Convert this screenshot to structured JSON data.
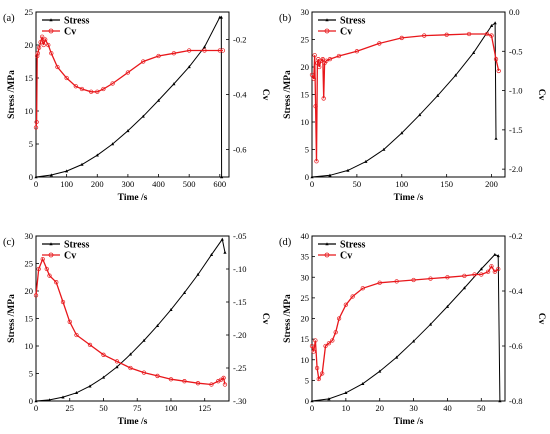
{
  "colors": {
    "stress": "#000000",
    "cv": "#e8171b",
    "axis": "#000000"
  },
  "chart_data": [
    {
      "type": "line",
      "panel_label": "(a)",
      "xlabel": "Time /s",
      "ylabel_left": "Stress /MPa",
      "ylabel_right": "Cv",
      "xlim": [
        0,
        630
      ],
      "xticks": [
        0,
        100,
        200,
        300,
        400,
        500,
        600
      ],
      "ylim_left": [
        0,
        25
      ],
      "yticks_left": [
        0,
        5,
        10,
        15,
        20,
        25
      ],
      "ylim_right": [
        -0.7,
        -0.1
      ],
      "yticks_right": [
        -0.6,
        -0.4,
        -0.2
      ],
      "legend": {
        "placement": "top-left",
        "entries": [
          "Stress",
          "Cv"
        ]
      },
      "series": [
        {
          "name": "Stress",
          "axis": "left",
          "x": [
            0,
            50,
            100,
            150,
            200,
            250,
            300,
            350,
            400,
            450,
            500,
            550,
            600,
            605,
            606
          ],
          "y": [
            0,
            0.3,
            0.9,
            1.9,
            3.3,
            5.0,
            7.0,
            9.2,
            11.6,
            14.1,
            16.7,
            19.7,
            24.2,
            24.2,
            0
          ]
        },
        {
          "name": "Cv",
          "axis": "right",
          "x": [
            0,
            2,
            4,
            6,
            10,
            15,
            20,
            25,
            30,
            40,
            50,
            70,
            100,
            130,
            150,
            180,
            200,
            220,
            250,
            300,
            350,
            400,
            450,
            500,
            550,
            600,
            610
          ],
          "y": [
            -0.52,
            -0.5,
            -0.26,
            -0.25,
            -0.23,
            -0.21,
            -0.19,
            -0.22,
            -0.2,
            -0.22,
            -0.25,
            -0.3,
            -0.34,
            -0.37,
            -0.38,
            -0.39,
            -0.39,
            -0.38,
            -0.36,
            -0.32,
            -0.28,
            -0.26,
            -0.25,
            -0.24,
            -0.24,
            -0.24,
            -0.24
          ]
        }
      ]
    },
    {
      "type": "line",
      "panel_label": "(b)",
      "xlabel": "Time /s",
      "ylabel_left": "Stress /MPa",
      "ylabel_right": "Cv",
      "xlim": [
        0,
        215
      ],
      "xticks": [
        0,
        50,
        100,
        150,
        200
      ],
      "ylim_left": [
        0,
        30
      ],
      "yticks_left": [
        0,
        5,
        10,
        15,
        20,
        25,
        30
      ],
      "ylim_right": [
        -2.1,
        0.0
      ],
      "yticks_right": [
        -2.0,
        -1.5,
        -1.0,
        -0.5,
        0.0
      ],
      "legend": {
        "placement": "top-left",
        "entries": [
          "Stress",
          "Cv"
        ]
      },
      "series": [
        {
          "name": "Stress",
          "axis": "left",
          "x": [
            0,
            20,
            40,
            60,
            80,
            100,
            120,
            140,
            160,
            180,
            200,
            204,
            205
          ],
          "y": [
            0,
            0.3,
            1.2,
            2.8,
            5.0,
            8.0,
            11.3,
            14.8,
            18.5,
            22.6,
            27.5,
            28.0,
            7.0
          ]
        },
        {
          "name": "Cv",
          "axis": "right",
          "x": [
            0,
            2,
            3,
            4,
            5,
            6,
            7,
            8,
            10,
            12,
            13,
            14,
            16,
            20,
            30,
            50,
            75,
            100,
            125,
            150,
            175,
            195,
            200,
            205,
            208
          ],
          "y": [
            -0.8,
            -0.85,
            -0.55,
            -1.2,
            -1.9,
            -0.65,
            -0.6,
            -0.7,
            -0.62,
            -0.6,
            -1.1,
            -0.65,
            -0.62,
            -0.6,
            -0.56,
            -0.5,
            -0.4,
            -0.33,
            -0.3,
            -0.29,
            -0.28,
            -0.28,
            -0.3,
            -0.6,
            -0.75
          ]
        }
      ]
    },
    {
      "type": "line",
      "panel_label": "(c)",
      "xlabel": "Time /s",
      "ylabel_left": "Stress /MPa",
      "ylabel_right": "Cv",
      "xlim": [
        0,
        143
      ],
      "xticks": [
        0,
        25,
        50,
        75,
        100,
        125
      ],
      "ylim_left": [
        0,
        30
      ],
      "yticks_left": [
        0,
        5,
        10,
        15,
        20,
        25,
        30
      ],
      "ylim_right": [
        -0.3,
        -0.05
      ],
      "yticks_right": [
        -0.3,
        -0.25,
        -0.2,
        -0.15,
        -0.1,
        -0.05
      ],
      "legend": {
        "placement": "top-left",
        "entries": [
          "Stress",
          "Cv"
        ]
      },
      "series": [
        {
          "name": "Stress",
          "axis": "left",
          "x": [
            0,
            10,
            20,
            30,
            40,
            50,
            60,
            70,
            80,
            90,
            100,
            110,
            120,
            130,
            138,
            140
          ],
          "y": [
            0,
            0.2,
            0.7,
            1.5,
            2.7,
            4.3,
            6.2,
            8.5,
            11.0,
            13.7,
            16.6,
            19.7,
            23.0,
            26.6,
            29.4,
            27.0
          ]
        },
        {
          "name": "Cv",
          "axis": "right",
          "x": [
            0,
            2,
            5,
            8,
            10,
            15,
            20,
            25,
            30,
            40,
            50,
            60,
            70,
            80,
            90,
            100,
            110,
            120,
            130,
            135,
            137,
            139,
            140
          ],
          "y": [
            -0.14,
            -0.1,
            -0.085,
            -0.1,
            -0.11,
            -0.12,
            -0.15,
            -0.18,
            -0.2,
            -0.215,
            -0.23,
            -0.24,
            -0.25,
            -0.257,
            -0.262,
            -0.267,
            -0.27,
            -0.273,
            -0.275,
            -0.27,
            -0.268,
            -0.265,
            -0.275
          ]
        }
      ]
    },
    {
      "type": "line",
      "panel_label": "(d)",
      "xlabel": "Time /s",
      "ylabel_left": "Stress /MPa",
      "ylabel_right": "Cv",
      "xlim": [
        0,
        57
      ],
      "xticks": [
        0,
        10,
        20,
        30,
        40,
        50
      ],
      "ylim_left": [
        0,
        40
      ],
      "yticks_left": [
        0,
        5,
        10,
        15,
        20,
        25,
        30,
        35,
        40
      ],
      "ylim_right": [
        -0.8,
        -0.2
      ],
      "yticks_right": [
        -0.8,
        -0.6,
        -0.4,
        -0.2
      ],
      "legend": {
        "placement": "top-left",
        "entries": [
          "Stress",
          "Cv"
        ]
      },
      "series": [
        {
          "name": "Stress",
          "axis": "left",
          "x": [
            0,
            5,
            10,
            15,
            20,
            25,
            30,
            35,
            40,
            45,
            50,
            54,
            55,
            55.5
          ],
          "y": [
            0,
            0.5,
            2.0,
            4.2,
            7.2,
            10.6,
            14.5,
            18.6,
            22.9,
            27.4,
            32.0,
            35.5,
            35.2,
            0
          ]
        },
        {
          "name": "Cv",
          "axis": "right",
          "x": [
            0,
            0.5,
            1,
            1.5,
            2,
            3,
            4,
            5,
            6,
            7,
            8,
            10,
            12,
            15,
            20,
            25,
            30,
            35,
            40,
            45,
            48,
            50,
            52,
            53,
            54,
            55
          ],
          "y": [
            -0.6,
            -0.62,
            -0.58,
            -0.68,
            -0.72,
            -0.7,
            -0.6,
            -0.59,
            -0.58,
            -0.55,
            -0.5,
            -0.45,
            -0.42,
            -0.39,
            -0.37,
            -0.365,
            -0.36,
            -0.355,
            -0.35,
            -0.345,
            -0.34,
            -0.34,
            -0.33,
            -0.31,
            -0.33,
            -0.32
          ]
        }
      ]
    }
  ]
}
